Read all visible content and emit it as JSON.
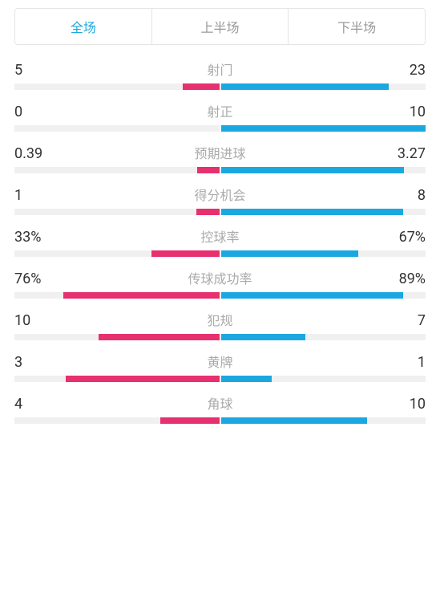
{
  "tabs": {
    "full": "全场",
    "first_half": "上半场",
    "second_half": "下半场",
    "active_index": 0
  },
  "colors": {
    "left_team": "#e6306f",
    "right_team": "#1ba8e0",
    "bar_background": "#f0f0f0",
    "tab_active": "#1ba8e0",
    "tab_inactive": "#999999",
    "label_color": "#aaaaaa",
    "value_color": "#333333"
  },
  "stats": [
    {
      "label": "射门",
      "left_value": "5",
      "right_value": "23",
      "left_fill_pct": 17.9,
      "right_fill_pct": 82.1
    },
    {
      "label": "射正",
      "left_value": "0",
      "right_value": "10",
      "left_fill_pct": 0,
      "right_fill_pct": 100
    },
    {
      "label": "预期进球",
      "left_value": "0.39",
      "right_value": "3.27",
      "left_fill_pct": 10.7,
      "right_fill_pct": 89.3
    },
    {
      "label": "得分机会",
      "left_value": "1",
      "right_value": "8",
      "left_fill_pct": 11.1,
      "right_fill_pct": 88.9
    },
    {
      "label": "控球率",
      "left_value": "33%",
      "right_value": "67%",
      "left_fill_pct": 33,
      "right_fill_pct": 67
    },
    {
      "label": "传球成功率",
      "left_value": "76%",
      "right_value": "89%",
      "left_fill_pct": 76,
      "right_fill_pct": 89
    },
    {
      "label": "犯规",
      "left_value": "10",
      "right_value": "7",
      "left_fill_pct": 58.8,
      "right_fill_pct": 41.2
    },
    {
      "label": "黄牌",
      "left_value": "3",
      "right_value": "1",
      "left_fill_pct": 75,
      "right_fill_pct": 25
    },
    {
      "label": "角球",
      "left_value": "4",
      "right_value": "10",
      "left_fill_pct": 28.6,
      "right_fill_pct": 71.4
    }
  ]
}
